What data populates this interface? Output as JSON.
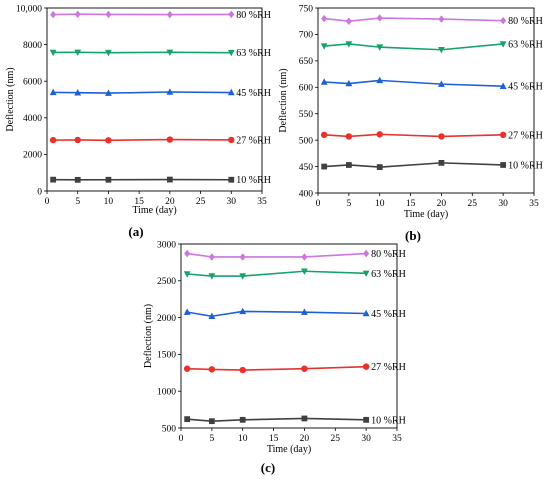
{
  "chart_data": [
    {
      "type": "line",
      "panel_label": "(a)",
      "xlabel": "Time (day)",
      "ylabel": "Deflection (nm)",
      "xlim": [
        0,
        35
      ],
      "ylim": [
        0,
        10000
      ],
      "xticks": [
        "0",
        "5",
        "10",
        "15",
        "20",
        "25",
        "30",
        "35"
      ],
      "yticks": [
        "0",
        "2000",
        "4000",
        "6000",
        "8000",
        "10,000"
      ],
      "x": [
        1,
        5,
        10,
        20,
        30
      ],
      "series": [
        {
          "name": "10 %RH",
          "marker": "square",
          "color": "#404040",
          "values": [
            620,
            610,
            615,
            625,
            615
          ]
        },
        {
          "name": "27 %RH",
          "marker": "circle",
          "color": "#e8322e",
          "values": [
            2780,
            2790,
            2770,
            2810,
            2790
          ]
        },
        {
          "name": "45 %RH",
          "marker": "triangle",
          "color": "#1f5fd6",
          "values": [
            5390,
            5370,
            5350,
            5410,
            5380
          ]
        },
        {
          "name": "63 %RH",
          "marker": "triangle-down",
          "color": "#16a36b",
          "values": [
            7570,
            7580,
            7560,
            7580,
            7560
          ]
        },
        {
          "name": "80 %RH",
          "marker": "diamond",
          "color": "#cc77dd",
          "values": [
            9640,
            9660,
            9650,
            9640,
            9650
          ]
        }
      ]
    },
    {
      "type": "line",
      "panel_label": "(b)",
      "xlabel": "Time (day)",
      "ylabel": "Deflection (nm)",
      "xlim": [
        0,
        35
      ],
      "ylim": [
        400,
        750
      ],
      "xticks": [
        "0",
        "5",
        "10",
        "15",
        "20",
        "25",
        "30",
        "35"
      ],
      "yticks": [
        "400",
        "450",
        "500",
        "550",
        "600",
        "650",
        "700",
        "750"
      ],
      "x": [
        1,
        5,
        10,
        20,
        30
      ],
      "series": [
        {
          "name": "10 %RH",
          "marker": "square",
          "color": "#404040",
          "values": [
            450,
            453,
            449,
            457,
            453
          ]
        },
        {
          "name": "27 %RH",
          "marker": "circle",
          "color": "#e8322e",
          "values": [
            510,
            507,
            511,
            507,
            510
          ]
        },
        {
          "name": "45 %RH",
          "marker": "triangle",
          "color": "#1f5fd6",
          "values": [
            610,
            607,
            613,
            606,
            602
          ]
        },
        {
          "name": "63 %RH",
          "marker": "triangle-down",
          "color": "#16a36b",
          "values": [
            678,
            682,
            676,
            671,
            682
          ]
        },
        {
          "name": "80 %RH",
          "marker": "diamond",
          "color": "#cc77dd",
          "values": [
            730,
            725,
            731,
            729,
            726
          ]
        }
      ]
    },
    {
      "type": "line",
      "panel_label": "(c)",
      "xlabel": "Time (day)",
      "ylabel": "Deflection (nm)",
      "xlim": [
        0,
        35
      ],
      "ylim": [
        500,
        3200
      ],
      "xticks": [
        "0",
        "5",
        "10",
        "15",
        "20",
        "25",
        "30",
        "35"
      ],
      "yticks": [
        "500",
        "1000",
        "1500",
        "2000",
        "2500",
        "3000"
      ],
      "x": [
        1,
        5,
        10,
        20,
        30
      ],
      "series": [
        {
          "name": "10 %RH",
          "marker": "square",
          "color": "#404040",
          "values": [
            630,
            600,
            620,
            640,
            620
          ]
        },
        {
          "name": "27 %RH",
          "marker": "circle",
          "color": "#e8322e",
          "values": [
            1370,
            1360,
            1350,
            1370,
            1400
          ]
        },
        {
          "name": "45 %RH",
          "marker": "triangle",
          "color": "#1f5fd6",
          "values": [
            2200,
            2140,
            2210,
            2200,
            2180
          ]
        },
        {
          "name": "63 %RH",
          "marker": "triangle-down",
          "color": "#16a36b",
          "values": [
            2760,
            2730,
            2730,
            2800,
            2770
          ]
        },
        {
          "name": "80 %RH",
          "marker": "diamond",
          "color": "#cc77dd",
          "values": [
            3060,
            3010,
            3010,
            3010,
            3060
          ]
        }
      ]
    }
  ]
}
